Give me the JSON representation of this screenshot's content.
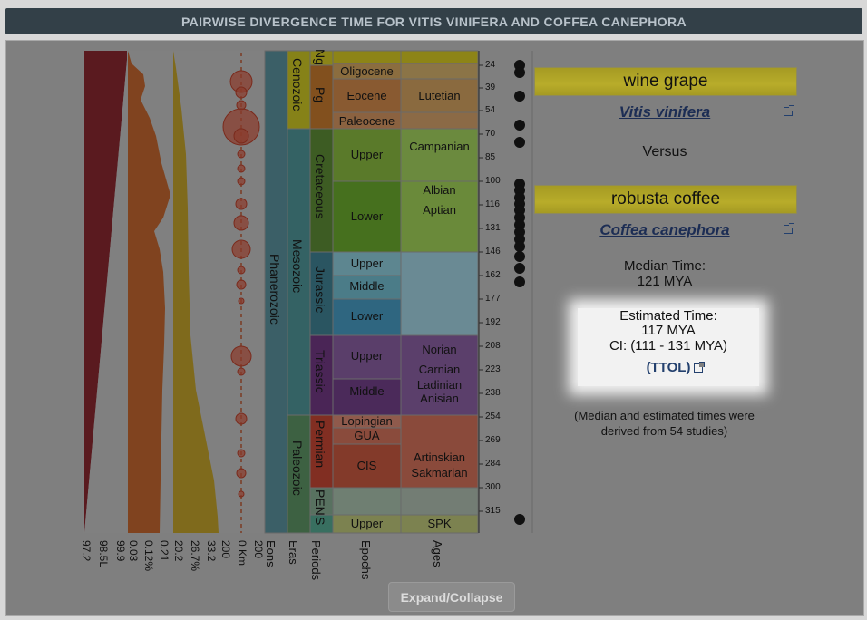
{
  "header": {
    "title": "PAIRWISE DIVERGENCE TIME FOR VITIS VINIFERA AND COFFEA CANEPHORA"
  },
  "left_axes": {
    "col1": [
      "97.2",
      "98.5L",
      "99.9"
    ],
    "col2": [
      "0.03",
      "0.12%",
      "0.21"
    ],
    "col3": [
      "20.2",
      "26.7%",
      "33.2"
    ],
    "col4": [
      "200",
      "0 Km",
      "200"
    ]
  },
  "timescale": {
    "column_labels": [
      "Eons",
      "Eras",
      "Periods",
      "Epochs",
      "Ages"
    ],
    "eons": [
      {
        "label": "Phanerozoic"
      }
    ],
    "eras": [
      {
        "label": "Cenozoic"
      },
      {
        "label": "Mesozoic"
      },
      {
        "label": "Paleozoic"
      }
    ],
    "periods": [
      {
        "label": "Ng"
      },
      {
        "label": "Pg"
      },
      {
        "label": "Cretaceous"
      },
      {
        "label": "Jurassic"
      },
      {
        "label": "Triassic"
      },
      {
        "label": "Permian"
      },
      {
        "label": "PEN"
      },
      {
        "label": "S"
      }
    ],
    "epochs": [
      {
        "label": "Oligocene"
      },
      {
        "label": "Eocene"
      },
      {
        "label": "Paleocene"
      },
      {
        "label": "Upper"
      },
      {
        "label": "Lower"
      },
      {
        "label": "Upper"
      },
      {
        "label": "Middle"
      },
      {
        "label": "Lower"
      },
      {
        "label": "Upper"
      },
      {
        "label": "Middle"
      },
      {
        "label": "Lopingian"
      },
      {
        "label": "GUA"
      },
      {
        "label": "CIS"
      },
      {
        "label": "Upper"
      }
    ],
    "ages": [
      {
        "label": "Lutetian"
      },
      {
        "label": "Campanian"
      },
      {
        "label": "Albian"
      },
      {
        "label": "Aptian"
      },
      {
        "label": "Norian"
      },
      {
        "label": "Carnian"
      },
      {
        "label": "Ladinian"
      },
      {
        "label": "Anisian"
      },
      {
        "label": "Artinskian"
      },
      {
        "label": "Sakmarian"
      },
      {
        "label": "SPK"
      }
    ],
    "ticks": [
      "24",
      "39",
      "54",
      "70",
      "85",
      "100",
      "116",
      "131",
      "146",
      "162",
      "177",
      "192",
      "208",
      "223",
      "238",
      "254",
      "269",
      "284",
      "300",
      "315"
    ]
  },
  "species_a": {
    "common": "wine grape",
    "scientific": "Vitis vinifera"
  },
  "versus": "Versus",
  "species_b": {
    "common": "robusta coffee",
    "scientific": "Coffea canephora"
  },
  "median": {
    "label": "Median Time:",
    "value": "121 MYA"
  },
  "estimated": {
    "label": "Estimated Time:",
    "value": "117 MYA",
    "ci": "CI: (111 - 131 MYA)",
    "link": "(TTOL)"
  },
  "note": "(Median and estimated times were derived from 54 studies)",
  "button": {
    "label": "Expand/Collapse"
  },
  "icons": [
    "external-link-icon"
  ]
}
